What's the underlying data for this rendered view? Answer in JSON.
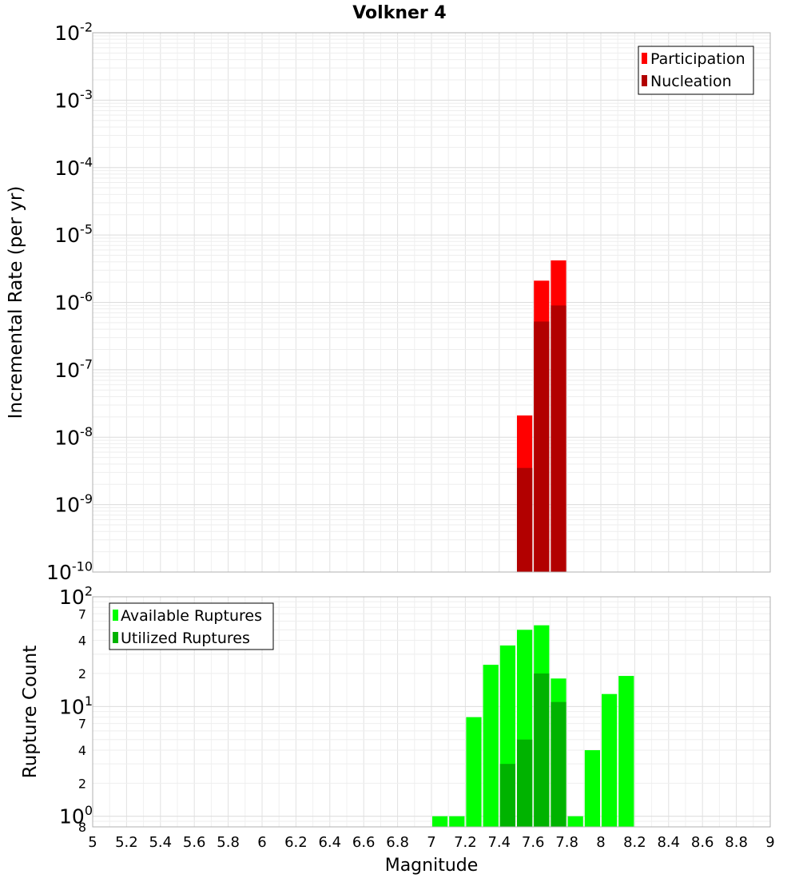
{
  "chart_data": [
    {
      "type": "bar",
      "title": "Volkner 4",
      "xlabel": "",
      "ylabel": "Incremental Rate (per yr)",
      "yscale": "log",
      "ylim": [
        1e-10,
        0.01
      ],
      "xlim": [
        5,
        9
      ],
      "grid": true,
      "legend_position": "top-right",
      "bar_width": 0.1,
      "y_tick_labels": [
        {
          "value": 1e-10,
          "base": "10",
          "exp": "-10"
        },
        {
          "value": 1e-09,
          "base": "10",
          "exp": "-9"
        },
        {
          "value": 1e-08,
          "base": "10",
          "exp": "-8"
        },
        {
          "value": 1e-07,
          "base": "10",
          "exp": "-7"
        },
        {
          "value": 1e-06,
          "base": "10",
          "exp": "-6"
        },
        {
          "value": 1e-05,
          "base": "10",
          "exp": "-5"
        },
        {
          "value": 0.0001,
          "base": "10",
          "exp": "-4"
        },
        {
          "value": 0.001,
          "base": "10",
          "exp": "-3"
        },
        {
          "value": 0.01,
          "base": "10",
          "exp": "-2"
        }
      ],
      "series": [
        {
          "name": "Participation",
          "color": "#ff0000",
          "x": [
            7.55,
            7.65,
            7.75
          ],
          "values": [
            2.1e-08,
            2.1e-06,
            4.2e-06
          ]
        },
        {
          "name": "Nucleation",
          "color": "#b20000",
          "x": [
            7.55,
            7.65,
            7.75
          ],
          "values": [
            3.5e-09,
            5.2e-07,
            9e-07
          ]
        }
      ]
    },
    {
      "type": "bar",
      "title": "",
      "xlabel": "Magnitude",
      "ylabel": "Rupture Count",
      "yscale": "log",
      "ylim": [
        0.8,
        100
      ],
      "xlim": [
        5,
        9
      ],
      "grid": true,
      "legend_position": "top-left",
      "bar_width": 0.1,
      "x_tick_labels": [
        "5",
        "5.2",
        "5.4",
        "5.6",
        "5.8",
        "6",
        "6.2",
        "6.4",
        "6.6",
        "6.8",
        "7",
        "7.2",
        "7.4",
        "7.6",
        "7.8",
        "8",
        "8.2",
        "8.4",
        "8.6",
        "8.8",
        "9"
      ],
      "y_major_tick_labels": [
        {
          "value": 1,
          "base": "10",
          "exp": "0"
        },
        {
          "value": 10,
          "base": "10",
          "exp": "1"
        },
        {
          "value": 100,
          "base": "10",
          "exp": "2"
        }
      ],
      "y_minor_tick_labels": [
        {
          "value": 0.8,
          "label": "8"
        },
        {
          "value": 2,
          "label": "2"
        },
        {
          "value": 4,
          "label": "4"
        },
        {
          "value": 7,
          "label": "7"
        },
        {
          "value": 20,
          "label": "2"
        },
        {
          "value": 40,
          "label": "4"
        },
        {
          "value": 70,
          "label": "7"
        }
      ],
      "series": [
        {
          "name": "Available Ruptures",
          "color": "#00ff00",
          "x": [
            7.05,
            7.15,
            7.25,
            7.35,
            7.45,
            7.55,
            7.65,
            7.75,
            7.85,
            7.95,
            8.05,
            8.15
          ],
          "values": [
            1,
            1,
            8,
            24,
            36,
            50,
            55,
            18,
            1,
            4,
            13,
            19
          ]
        },
        {
          "name": "Utilized Ruptures",
          "color": "#00b300",
          "x": [
            7.45,
            7.55,
            7.65,
            7.75
          ],
          "values": [
            3,
            5,
            20,
            11
          ]
        }
      ]
    }
  ]
}
